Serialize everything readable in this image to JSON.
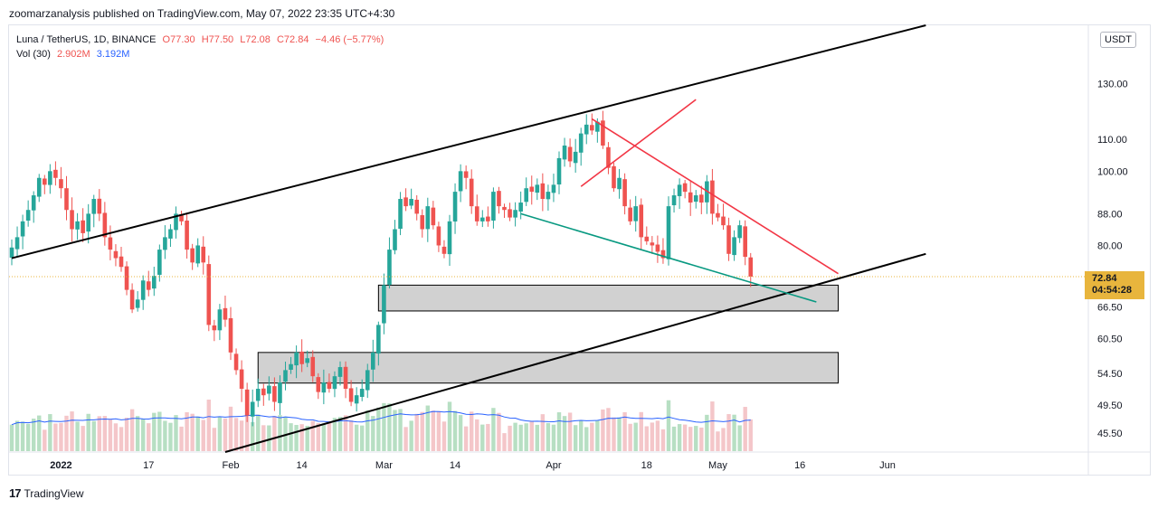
{
  "header": {
    "published": "zoomarzanalysis published on TradingView.com, May 07, 2022 23:35 UTC+4:30"
  },
  "legend": {
    "symbol": "Luna / TetherUS, 1D, BINANCE",
    "open": "O77.30",
    "high": "H77.50",
    "low": "L72.08",
    "close": "C72.84",
    "change": "−4.46 (−5.77%)",
    "vol_label": "Vol (30)",
    "vol_value": "2.902M",
    "vol_ma": "3.192M"
  },
  "currency_button": "USDT",
  "last_price": {
    "price": "72.84",
    "countdown": "04:54:28"
  },
  "brand": {
    "logo": "17",
    "name": "TradingView"
  },
  "colors": {
    "up": "#26a69a",
    "down": "#ef5350",
    "volume_up": "#b7dfc3",
    "volume_down": "#f4c6c9",
    "volume_ma": "#2962ff",
    "channel": "#000000",
    "red_trendline": "#f23645",
    "teal_trendline": "#089981",
    "zone_fill": "#c9c9c9",
    "last_price_tag": "#e8b53d"
  },
  "chart_data": {
    "type": "candlestick",
    "title": "Luna / TetherUS, 1D, BINANCE",
    "scale": "log",
    "yticks": [
      "130.00",
      "110.00",
      "100.00",
      "88.00",
      "80.00",
      "66.50",
      "60.50",
      "54.50",
      "49.50",
      "45.50"
    ],
    "ylim": [
      43,
      155
    ],
    "xticks": [
      {
        "label": "2022",
        "date": "2022-01-01"
      },
      {
        "label": "17",
        "date": "2022-01-17"
      },
      {
        "label": "Feb",
        "date": "2022-02-01"
      },
      {
        "label": "14",
        "date": "2022-02-14"
      },
      {
        "label": "Mar",
        "date": "2022-03-01"
      },
      {
        "label": "14",
        "date": "2022-03-14"
      },
      {
        "label": "Apr",
        "date": "2022-04-01"
      },
      {
        "label": "18",
        "date": "2022-04-18"
      },
      {
        "label": "May",
        "date": "2022-05-01"
      },
      {
        "label": "16",
        "date": "2022-05-16"
      },
      {
        "label": "Jun",
        "date": "2022-06-01"
      }
    ],
    "xlim": [
      "2021-12-23",
      "2022-06-10"
    ],
    "closes": [
      [
        "2021-12-23",
        79.5
      ],
      [
        "2021-12-24",
        82.0
      ],
      [
        "2021-12-25",
        86.0
      ],
      [
        "2021-12-26",
        89.0
      ],
      [
        "2021-12-27",
        93.0
      ],
      [
        "2021-12-28",
        98.0
      ],
      [
        "2021-12-29",
        96.0
      ],
      [
        "2021-12-30",
        100.0
      ],
      [
        "2021-12-31",
        98.0
      ],
      [
        "2022-01-01",
        95.0
      ],
      [
        "2022-01-02",
        89.0
      ],
      [
        "2022-01-03",
        84.0
      ],
      [
        "2022-01-04",
        86.0
      ],
      [
        "2022-01-05",
        83.0
      ],
      [
        "2022-01-06",
        88.0
      ],
      [
        "2022-01-07",
        92.0
      ],
      [
        "2022-01-08",
        88.0
      ],
      [
        "2022-01-09",
        82.0
      ],
      [
        "2022-01-10",
        79.0
      ],
      [
        "2022-01-11",
        77.0
      ],
      [
        "2022-01-12",
        75.0
      ],
      [
        "2022-01-13",
        70.0
      ],
      [
        "2022-01-14",
        66.0
      ],
      [
        "2022-01-15",
        68.0
      ],
      [
        "2022-01-16",
        72.0
      ],
      [
        "2022-01-17",
        70.0
      ],
      [
        "2022-01-18",
        73.0
      ],
      [
        "2022-01-19",
        79.0
      ],
      [
        "2022-01-20",
        82.0
      ],
      [
        "2022-01-21",
        84.0
      ],
      [
        "2022-01-22",
        88.0
      ],
      [
        "2022-01-23",
        86.0
      ],
      [
        "2022-01-24",
        79.0
      ],
      [
        "2022-01-25",
        76.0
      ],
      [
        "2022-01-26",
        80.0
      ],
      [
        "2022-01-27",
        76.0
      ],
      [
        "2022-01-28",
        63.0
      ],
      [
        "2022-01-29",
        62.0
      ],
      [
        "2022-01-30",
        66.0
      ],
      [
        "2022-01-31",
        64.0
      ],
      [
        "2022-02-01",
        58.0
      ],
      [
        "2022-02-02",
        55.0
      ],
      [
        "2022-02-03",
        52.0
      ],
      [
        "2022-02-04",
        48.0
      ],
      [
        "2022-02-05",
        50.0
      ],
      [
        "2022-02-06",
        52.0
      ],
      [
        "2022-02-07",
        51.0
      ],
      [
        "2022-02-08",
        52.5
      ],
      [
        "2022-02-09",
        50.0
      ],
      [
        "2022-02-10",
        53.0
      ],
      [
        "2022-02-11",
        55.0
      ],
      [
        "2022-02-12",
        56.0
      ],
      [
        "2022-02-13",
        58.0
      ],
      [
        "2022-02-14",
        56.0
      ],
      [
        "2022-02-15",
        57.0
      ],
      [
        "2022-02-16",
        54.0
      ],
      [
        "2022-02-17",
        51.5
      ],
      [
        "2022-02-18",
        53.0
      ],
      [
        "2022-02-19",
        52.0
      ],
      [
        "2022-02-20",
        54.0
      ],
      [
        "2022-02-21",
        55.5
      ],
      [
        "2022-02-22",
        52.0
      ],
      [
        "2022-02-23",
        50.0
      ],
      [
        "2022-02-24",
        51.0
      ],
      [
        "2022-02-25",
        52.0
      ],
      [
        "2022-02-26",
        55.0
      ],
      [
        "2022-02-27",
        58.0
      ],
      [
        "2022-02-28",
        63.0
      ],
      [
        "2022-03-01",
        71.0
      ],
      [
        "2022-03-02",
        79.0
      ],
      [
        "2022-03-03",
        84.0
      ],
      [
        "2022-03-04",
        92.0
      ],
      [
        "2022-03-05",
        90.0
      ],
      [
        "2022-03-06",
        92.0
      ],
      [
        "2022-03-07",
        88.0
      ],
      [
        "2022-03-08",
        84.0
      ],
      [
        "2022-03-09",
        90.0
      ],
      [
        "2022-03-10",
        85.0
      ],
      [
        "2022-03-11",
        80.0
      ],
      [
        "2022-03-12",
        78.0
      ],
      [
        "2022-03-13",
        86.0
      ],
      [
        "2022-03-14",
        94.0
      ],
      [
        "2022-03-15",
        100.0
      ],
      [
        "2022-03-16",
        98.0
      ],
      [
        "2022-03-17",
        90.0
      ],
      [
        "2022-03-18",
        86.0
      ],
      [
        "2022-03-19",
        87.0
      ],
      [
        "2022-03-20",
        86.0
      ],
      [
        "2022-03-21",
        94.0
      ],
      [
        "2022-03-22",
        90.0
      ],
      [
        "2022-03-23",
        89.0
      ],
      [
        "2022-03-24",
        87.0
      ],
      [
        "2022-03-25",
        89.0
      ],
      [
        "2022-03-26",
        91.0
      ],
      [
        "2022-03-27",
        95.0
      ],
      [
        "2022-03-28",
        94.0
      ],
      [
        "2022-03-29",
        96.0
      ],
      [
        "2022-03-30",
        92.0
      ],
      [
        "2022-03-31",
        94.0
      ],
      [
        "2022-04-01",
        96.0
      ],
      [
        "2022-04-02",
        104.0
      ],
      [
        "2022-04-03",
        108.0
      ],
      [
        "2022-04-04",
        103.0
      ],
      [
        "2022-04-05",
        106.0
      ],
      [
        "2022-04-06",
        112.0
      ],
      [
        "2022-04-07",
        115.0
      ],
      [
        "2022-04-08",
        113.0
      ],
      [
        "2022-04-09",
        116.0
      ],
      [
        "2022-04-10",
        108.0
      ],
      [
        "2022-04-11",
        101.0
      ],
      [
        "2022-04-12",
        95.0
      ],
      [
        "2022-04-13",
        98.0
      ],
      [
        "2022-04-14",
        90.0
      ],
      [
        "2022-04-15",
        86.0
      ],
      [
        "2022-04-16",
        90.0
      ],
      [
        "2022-04-17",
        82.0
      ],
      [
        "2022-04-18",
        81.0
      ],
      [
        "2022-04-19",
        80.0
      ],
      [
        "2022-04-20",
        78.5
      ],
      [
        "2022-04-21",
        77.0
      ],
      [
        "2022-04-22",
        90.0
      ],
      [
        "2022-04-23",
        93.0
      ],
      [
        "2022-04-24",
        96.0
      ],
      [
        "2022-04-25",
        94.0
      ],
      [
        "2022-04-26",
        91.0
      ],
      [
        "2022-04-27",
        93.0
      ],
      [
        "2022-04-28",
        91.0
      ],
      [
        "2022-04-29",
        97.0
      ],
      [
        "2022-04-30",
        88.0
      ],
      [
        "2022-05-01",
        87.0
      ],
      [
        "2022-05-02",
        85.0
      ],
      [
        "2022-05-03",
        78.0
      ],
      [
        "2022-05-04",
        82.0
      ],
      [
        "2022-05-05",
        85.0
      ],
      [
        "2022-05-06",
        77.3
      ],
      [
        "2022-05-07",
        72.84
      ]
    ],
    "volume_ma_label": "Vol (30)",
    "drawings": [
      {
        "kind": "trendline",
        "color": "black",
        "from": [
          "2021-12-23",
          77
        ],
        "to": [
          "2022-06-08",
          155
        ]
      },
      {
        "kind": "trendline",
        "color": "black",
        "from": [
          "2022-01-31",
          43
        ],
        "to": [
          "2022-06-08",
          78
        ]
      },
      {
        "kind": "trendline",
        "color": "red",
        "from": [
          "2022-04-08",
          117
        ],
        "to": [
          "2022-05-23",
          73.5
        ]
      },
      {
        "kind": "trendline",
        "color": "red",
        "from": [
          "2022-04-06",
          95.5
        ],
        "to": [
          "2022-04-27",
          124
        ]
      },
      {
        "kind": "trendline",
        "color": "teal",
        "from": [
          "2022-03-26",
          88
        ],
        "to": [
          "2022-05-19",
          67.5
        ]
      },
      {
        "kind": "zone",
        "from": [
          "2022-02-28",
          65.7
        ],
        "to": [
          "2022-05-23",
          71.0
        ]
      },
      {
        "kind": "zone",
        "from": [
          "2022-02-06",
          52.9
        ],
        "to": [
          "2022-05-23",
          58.0
        ]
      }
    ]
  }
}
